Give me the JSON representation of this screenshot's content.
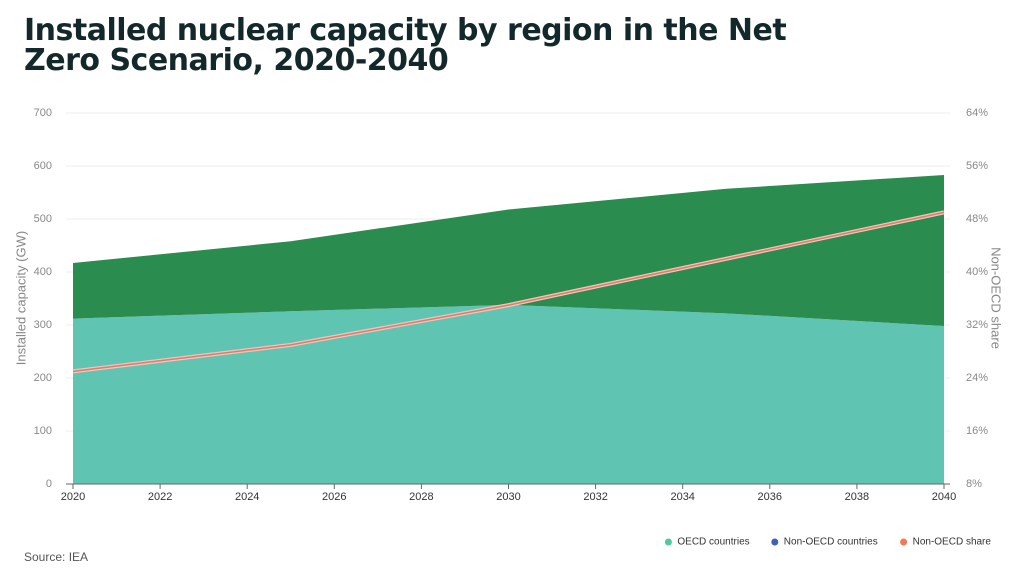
{
  "chart_data": {
    "type": "area",
    "title": "Installed nuclear capacity by region in the Net Zero Scenario, 2020-2040",
    "source": "Source: IEA",
    "y_label": "Installed capacity (GW)",
    "y2_label": "Non-OECD share",
    "x": [
      2020,
      2025,
      2030,
      2035,
      2040
    ],
    "series": [
      {
        "name": "OECD countries",
        "type": "area",
        "color": "#5fc4b2",
        "legend_color": "#4fc9a0",
        "values": [
          312,
          326,
          338,
          322,
          298
        ]
      },
      {
        "name": "Non-OECD countries",
        "type": "area",
        "color": "#2a8c4f",
        "legend_color": "#3a64b4",
        "values": [
          105,
          132,
          180,
          235,
          285
        ]
      },
      {
        "name": "Non-OECD share",
        "type": "line",
        "axis": "y2",
        "color": "#e07a6a",
        "legend_color": "#ef7a5a",
        "values": [
          25,
          29,
          35,
          42,
          49
        ]
      }
    ],
    "xlim": [
      2020,
      2040
    ],
    "xticks": [
      2020,
      2022,
      2024,
      2026,
      2028,
      2030,
      2032,
      2034,
      2036,
      2038,
      2040
    ],
    "ylim": [
      0,
      700
    ],
    "yticks": [
      0,
      100,
      200,
      300,
      400,
      500,
      600,
      700
    ],
    "y2lim": [
      8,
      64
    ],
    "y2ticks": [
      {
        "value": 8,
        "label": "8%"
      },
      {
        "value": 16,
        "label": "16%"
      },
      {
        "value": 24,
        "label": "24%"
      },
      {
        "value": 32,
        "label": "32%"
      },
      {
        "value": 40,
        "label": "40%"
      },
      {
        "value": 48,
        "label": "48%"
      },
      {
        "value": 56,
        "label": "56%"
      },
      {
        "value": 64,
        "label": "64%"
      }
    ],
    "grid": true,
    "legend": "bottom-right"
  }
}
